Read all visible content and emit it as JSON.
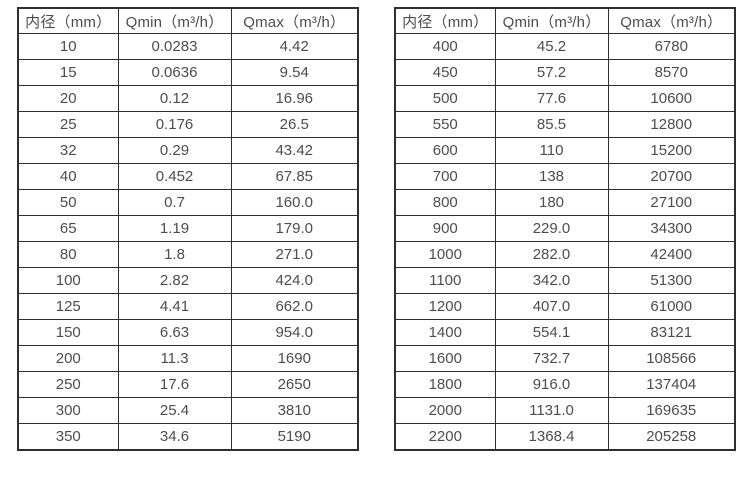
{
  "tables": [
    {
      "name": "flow-spec-table-small-diameters",
      "headers": [
        "内径（mm）",
        "Qmin（m³/h）",
        "Qmax（m³/h）"
      ],
      "rows": [
        [
          "10",
          "0.0283",
          "4.42"
        ],
        [
          "15",
          "0.0636",
          "9.54"
        ],
        [
          "20",
          "0.12",
          "16.96"
        ],
        [
          "25",
          "0.176",
          "26.5"
        ],
        [
          "32",
          "0.29",
          "43.42"
        ],
        [
          "40",
          "0.452",
          "67.85"
        ],
        [
          "50",
          "0.7",
          "160.0"
        ],
        [
          "65",
          "1.19",
          "179.0"
        ],
        [
          "80",
          "1.8",
          "271.0"
        ],
        [
          "100",
          "2.82",
          "424.0"
        ],
        [
          "125",
          "4.41",
          "662.0"
        ],
        [
          "150",
          "6.63",
          "954.0"
        ],
        [
          "200",
          "11.3",
          "1690"
        ],
        [
          "250",
          "17.6",
          "2650"
        ],
        [
          "300",
          "25.4",
          "3810"
        ],
        [
          "350",
          "34.6",
          "5190"
        ]
      ]
    },
    {
      "name": "flow-spec-table-large-diameters",
      "headers": [
        "内径（mm）",
        "Qmin（m³/h）",
        "Qmax（m³/h）"
      ],
      "rows": [
        [
          "400",
          "45.2",
          "6780"
        ],
        [
          "450",
          "57.2",
          "8570"
        ],
        [
          "500",
          "77.6",
          "10600"
        ],
        [
          "550",
          "85.5",
          "12800"
        ],
        [
          "600",
          "110",
          "15200"
        ],
        [
          "700",
          "138",
          "20700"
        ],
        [
          "800",
          "180",
          "27100"
        ],
        [
          "900",
          "229.0",
          "34300"
        ],
        [
          "1000",
          "282.0",
          "42400"
        ],
        [
          "1100",
          "342.0",
          "51300"
        ],
        [
          "1200",
          "407.0",
          "61000"
        ],
        [
          "1400",
          "554.1",
          "83121"
        ],
        [
          "1600",
          "732.7",
          "108566"
        ],
        [
          "1800",
          "916.0",
          "137404"
        ],
        [
          "2000",
          "1131.0",
          "169635"
        ],
        [
          "2200",
          "1368.4",
          "205258"
        ]
      ]
    }
  ],
  "colors": {
    "border": "#2f2f2f",
    "text": "#4d4d4d",
    "background": "#ffffff"
  }
}
